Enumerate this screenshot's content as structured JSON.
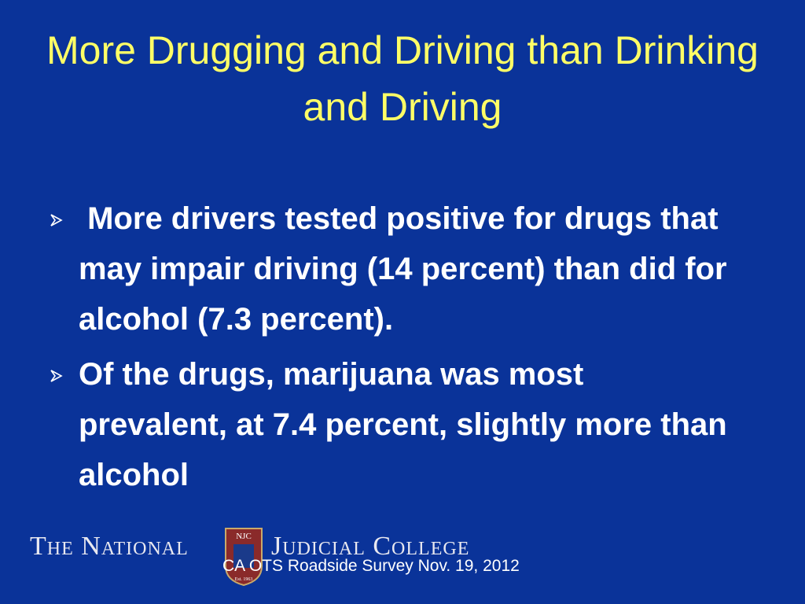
{
  "slide": {
    "title": "More Drugging and Driving than Drinking and Driving",
    "bullets": [
      " More drivers tested positive for drugs that may impair driving (14 percent) than did for alcohol (7.3 percent).",
      "Of the drugs, marijuana was most prevalent, at 7.4 percent, slightly more than alcohol"
    ],
    "logo": {
      "left": "The National",
      "emblem": "NJC",
      "established": "Est. 1963",
      "right": "Judicial College"
    },
    "footer": "CA OTS Roadside Survey Nov. 19, 2012"
  }
}
